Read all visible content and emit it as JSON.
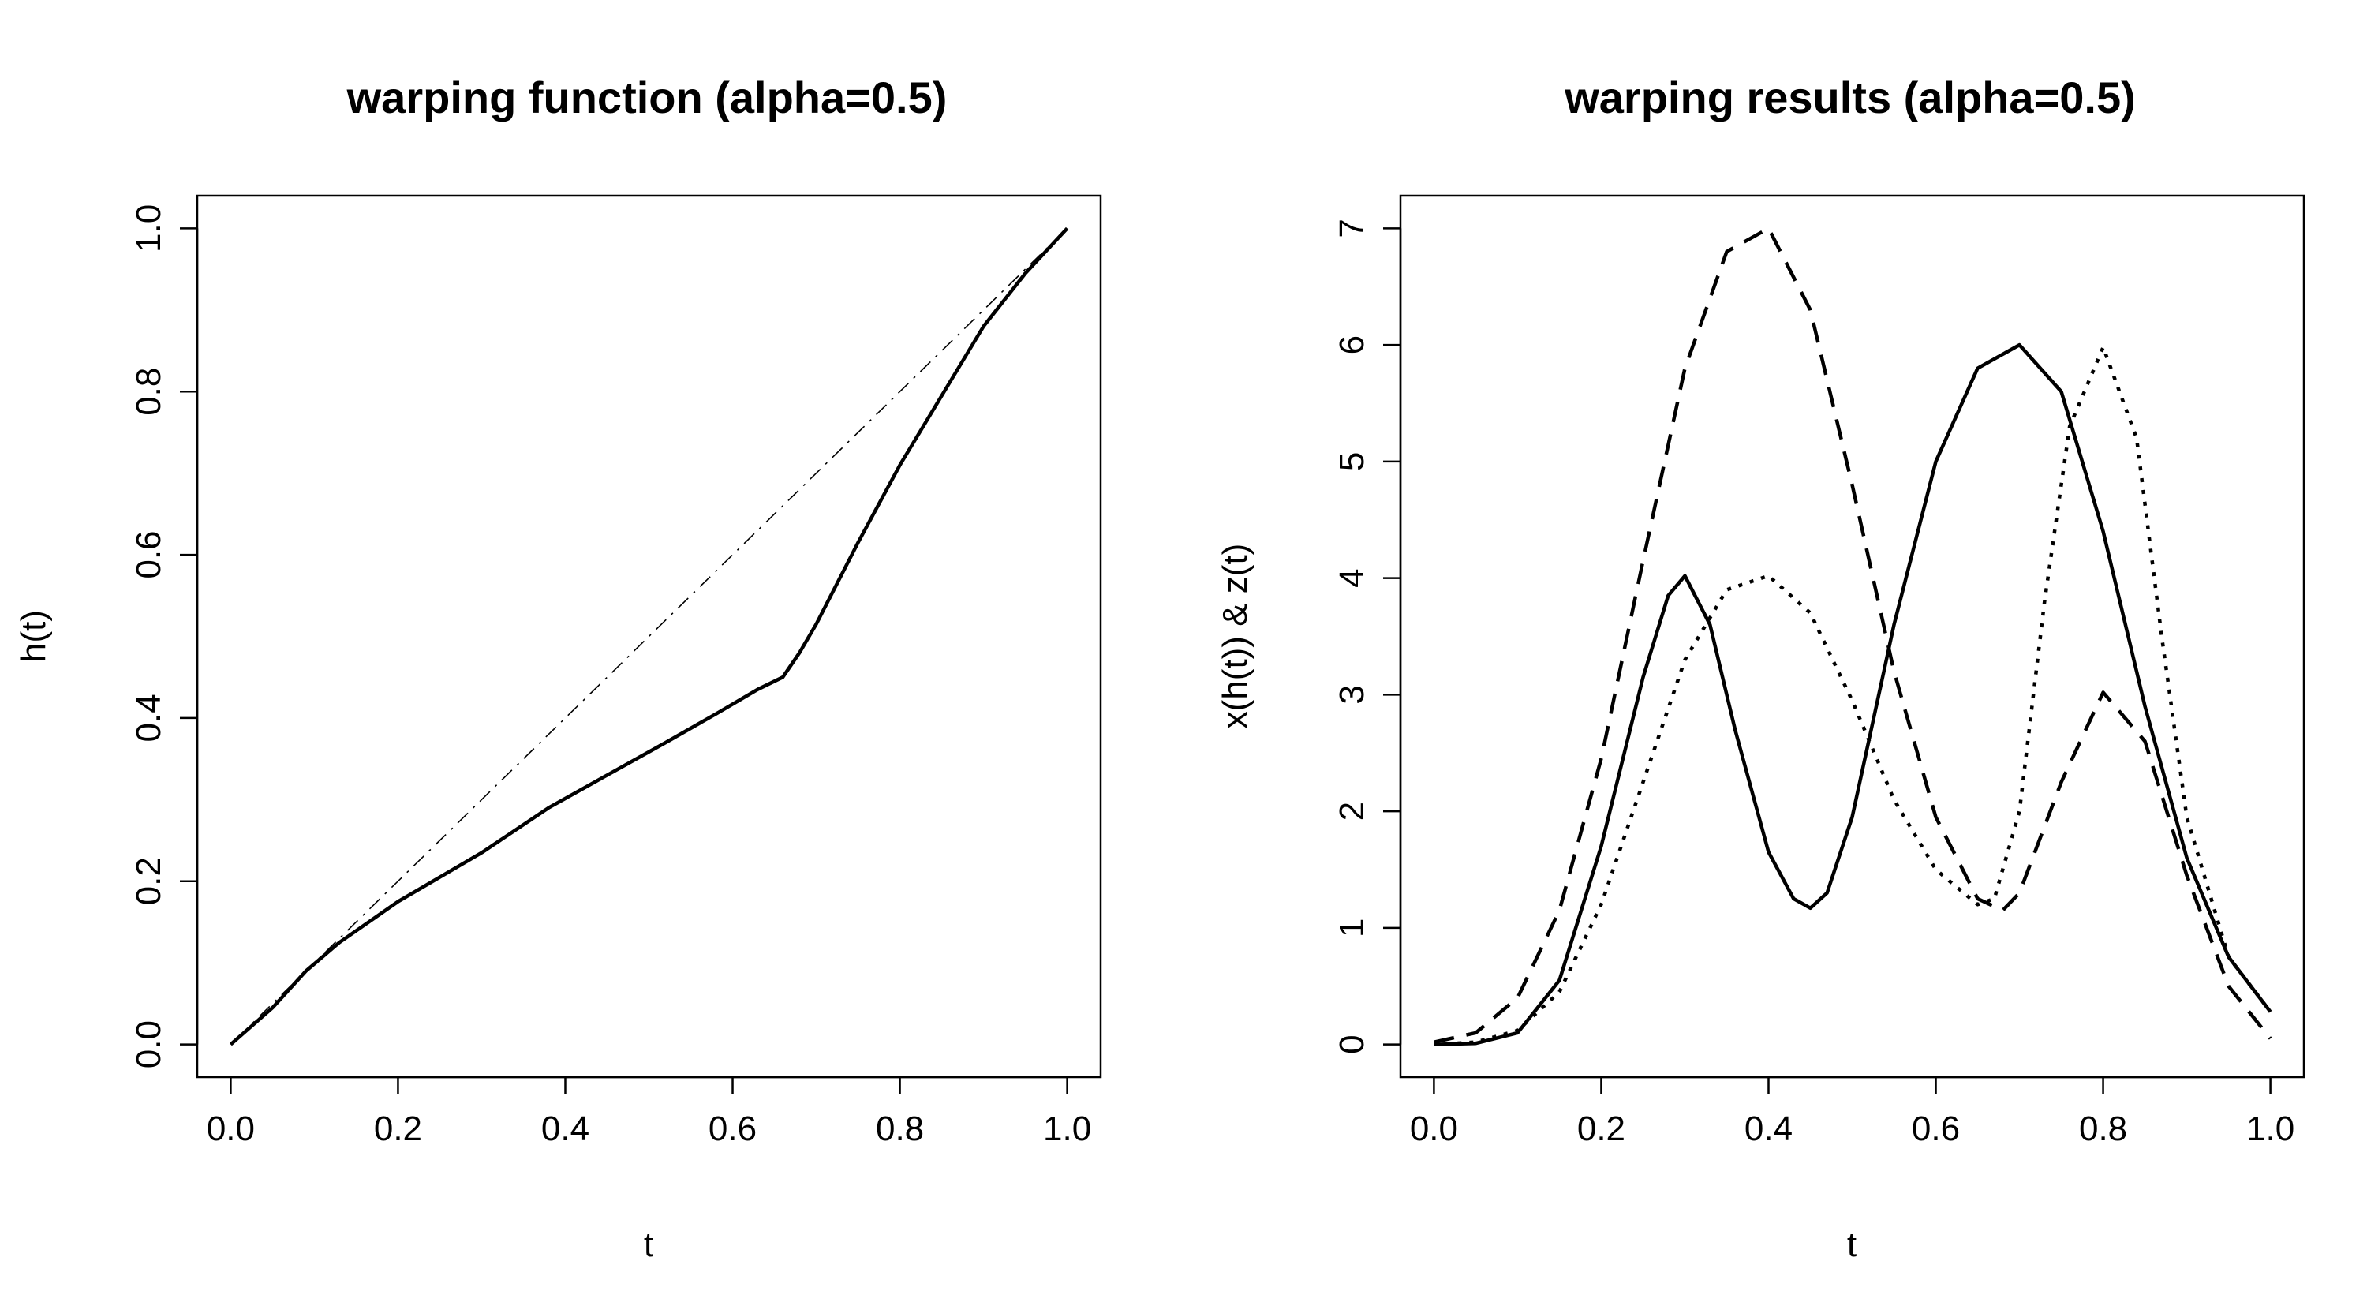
{
  "chart_data": [
    {
      "type": "line",
      "title": "warping function (alpha=0.5)",
      "xlabel": "t",
      "ylabel": "h(t)",
      "xlim": [
        -0.04,
        1.04
      ],
      "ylim": [
        -0.04,
        1.04
      ],
      "xticks": [
        "0.0",
        "0.2",
        "0.4",
        "0.6",
        "0.8",
        "1.0"
      ],
      "yticks": [
        "0.0",
        "0.2",
        "0.4",
        "0.6",
        "0.8",
        "1.0"
      ],
      "grid": false,
      "legend": "none",
      "series": [
        {
          "style": "solid",
          "x": [
            0.0,
            0.05,
            0.09,
            0.13,
            0.2,
            0.25,
            0.3,
            0.38,
            0.45,
            0.52,
            0.58,
            0.63,
            0.66,
            0.68,
            0.7,
            0.75,
            0.8,
            0.85,
            0.9,
            0.95,
            1.0
          ],
          "y": [
            0.0,
            0.045,
            0.09,
            0.125,
            0.175,
            0.205,
            0.235,
            0.29,
            0.33,
            0.37,
            0.405,
            0.435,
            0.45,
            0.48,
            0.515,
            0.615,
            0.71,
            0.795,
            0.88,
            0.945,
            1.0
          ]
        },
        {
          "style": "dotdash",
          "x": [
            0.0,
            1.0
          ],
          "y": [
            0.0,
            1.0
          ]
        }
      ]
    },
    {
      "type": "line",
      "title": "warping results (alpha=0.5)",
      "xlabel": "t",
      "ylabel": "x(h(t)) & z(t)",
      "xlim": [
        -0.04,
        1.04
      ],
      "ylim": [
        -0.28,
        7.28
      ],
      "xticks": [
        "0.0",
        "0.2",
        "0.4",
        "0.6",
        "0.8",
        "1.0"
      ],
      "yticks": [
        "0",
        "1",
        "2",
        "3",
        "4",
        "5",
        "6",
        "7"
      ],
      "grid": false,
      "legend": "none",
      "series": [
        {
          "style": "solid",
          "x": [
            0.0,
            0.05,
            0.1,
            0.15,
            0.2,
            0.25,
            0.28,
            0.3,
            0.33,
            0.36,
            0.4,
            0.43,
            0.45,
            0.47,
            0.5,
            0.55,
            0.6,
            0.65,
            0.7,
            0.75,
            0.8,
            0.85,
            0.9,
            0.95,
            1.0
          ],
          "y": [
            0.0,
            0.01,
            0.1,
            0.55,
            1.7,
            3.15,
            3.85,
            4.02,
            3.6,
            2.7,
            1.65,
            1.25,
            1.17,
            1.3,
            1.95,
            3.6,
            5.0,
            5.8,
            6.0,
            5.6,
            4.4,
            2.9,
            1.6,
            0.75,
            0.28
          ]
        },
        {
          "style": "dashed",
          "x": [
            0.0,
            0.05,
            0.1,
            0.15,
            0.2,
            0.25,
            0.3,
            0.35,
            0.4,
            0.45,
            0.5,
            0.55,
            0.6,
            0.65,
            0.68,
            0.7,
            0.75,
            0.8,
            0.85,
            0.9,
            0.95,
            1.0
          ],
          "y": [
            0.02,
            0.1,
            0.4,
            1.15,
            2.45,
            4.15,
            5.8,
            6.8,
            7.0,
            6.3,
            4.8,
            3.2,
            1.95,
            1.25,
            1.15,
            1.3,
            2.25,
            3.02,
            2.6,
            1.45,
            0.5,
            0.05
          ]
        },
        {
          "style": "dotted",
          "x": [
            0.0,
            0.05,
            0.1,
            0.15,
            0.2,
            0.25,
            0.3,
            0.35,
            0.4,
            0.45,
            0.5,
            0.55,
            0.6,
            0.65,
            0.67,
            0.7,
            0.73,
            0.76,
            0.8,
            0.84,
            0.87,
            0.9,
            0.95,
            1.0
          ],
          "y": [
            0.0,
            0.02,
            0.12,
            0.45,
            1.2,
            2.25,
            3.3,
            3.9,
            4.02,
            3.7,
            2.95,
            2.1,
            1.5,
            1.2,
            1.25,
            2.0,
            3.8,
            5.3,
            5.98,
            5.2,
            3.5,
            1.95,
            0.75,
            0.28
          ]
        }
      ]
    }
  ]
}
